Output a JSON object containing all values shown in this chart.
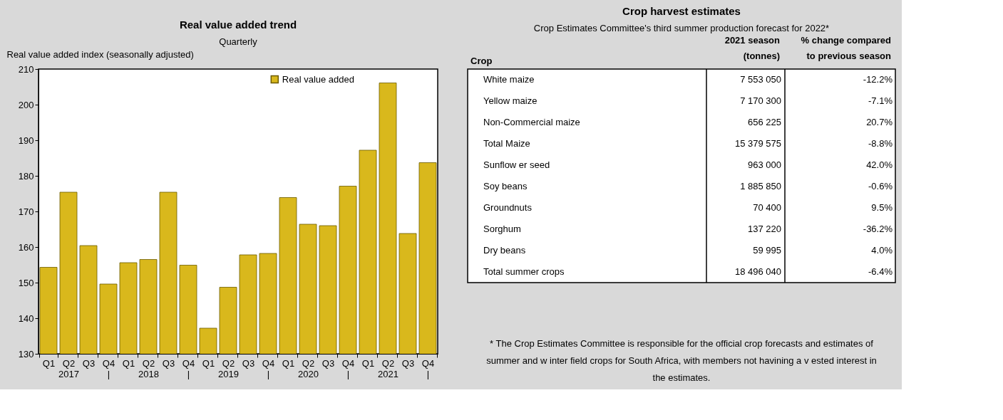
{
  "chart_data": [
    {
      "type": "bar",
      "title": "Real value added trend",
      "subtitle": "Quarterly",
      "ylabel": "Real value added index (seasonally adjusted)",
      "categories": [
        "Q1",
        "Q2\n2017",
        "Q3",
        "Q4\n|",
        "Q1",
        "Q2\n2018",
        "Q3",
        "Q4\n|",
        "Q1",
        "Q2\n2019",
        "Q3",
        "Q4\n|",
        "Q1",
        "Q2\n2020",
        "Q3",
        "Q4\n|",
        "Q1",
        "Q2\n2021",
        "Q3",
        "Q4\n|"
      ],
      "series": [
        {
          "name": "Real value added",
          "color": "#d9b81c",
          "values": [
            154.3,
            175.4,
            160.4,
            149.6,
            155.6,
            156.5,
            175.4,
            154.9,
            137.2,
            148.7,
            157.8,
            158.2,
            173.9,
            166.4,
            166.0,
            177.1,
            187.2,
            206.1,
            163.8,
            183.7
          ]
        }
      ],
      "ylim": [
        130,
        210
      ],
      "yticks": [
        130,
        140,
        150,
        160,
        170,
        180,
        190,
        200,
        210
      ],
      "grid": false,
      "legend": "top right"
    },
    {
      "type": "other",
      "title": "Crop harvest estimates",
      "subtitle": "Crop Estimates Committee's third summer production forecast for 2022*",
      "xlabel": "Crop",
      "categories": [
        "White maize",
        "Yellow  maize",
        "Non-Commercial maize",
        "Total Maize",
        "Sunflow er seed",
        "Soy beans",
        "Groundnuts",
        "Sorghum",
        "Dry  beans",
        "Total summer crops"
      ],
      "series": [
        {
          "name": "2021 season\n(tonnes)",
          "values": [
            7553050,
            7170300,
            656225,
            15379575,
            963000,
            1885850,
            70400,
            137220,
            59995,
            18496040
          ]
        },
        {
          "name": "% change compared\nto previous season",
          "values": [
            -12.2,
            -7.1,
            20.7,
            -8.8,
            42.0,
            -0.6,
            9.5,
            -36.2,
            4.0,
            -6.4
          ],
          "value_labels": [
            "-12.2%",
            "-7.1%",
            "20.7%",
            "-8.8%",
            "42.0%",
            "-0.6%",
            "9.5%",
            "-36.2%",
            "4.0%",
            "-6.4%"
          ]
        }
      ],
      "data_labels": true,
      "annotations": [
        "* The Crop Estimates Committee is responsible for the official crop forecasts and estimates of summer and w inter field crops for South Africa, with members not havining a v ested interest in the estimates."
      ]
    }
  ]
}
